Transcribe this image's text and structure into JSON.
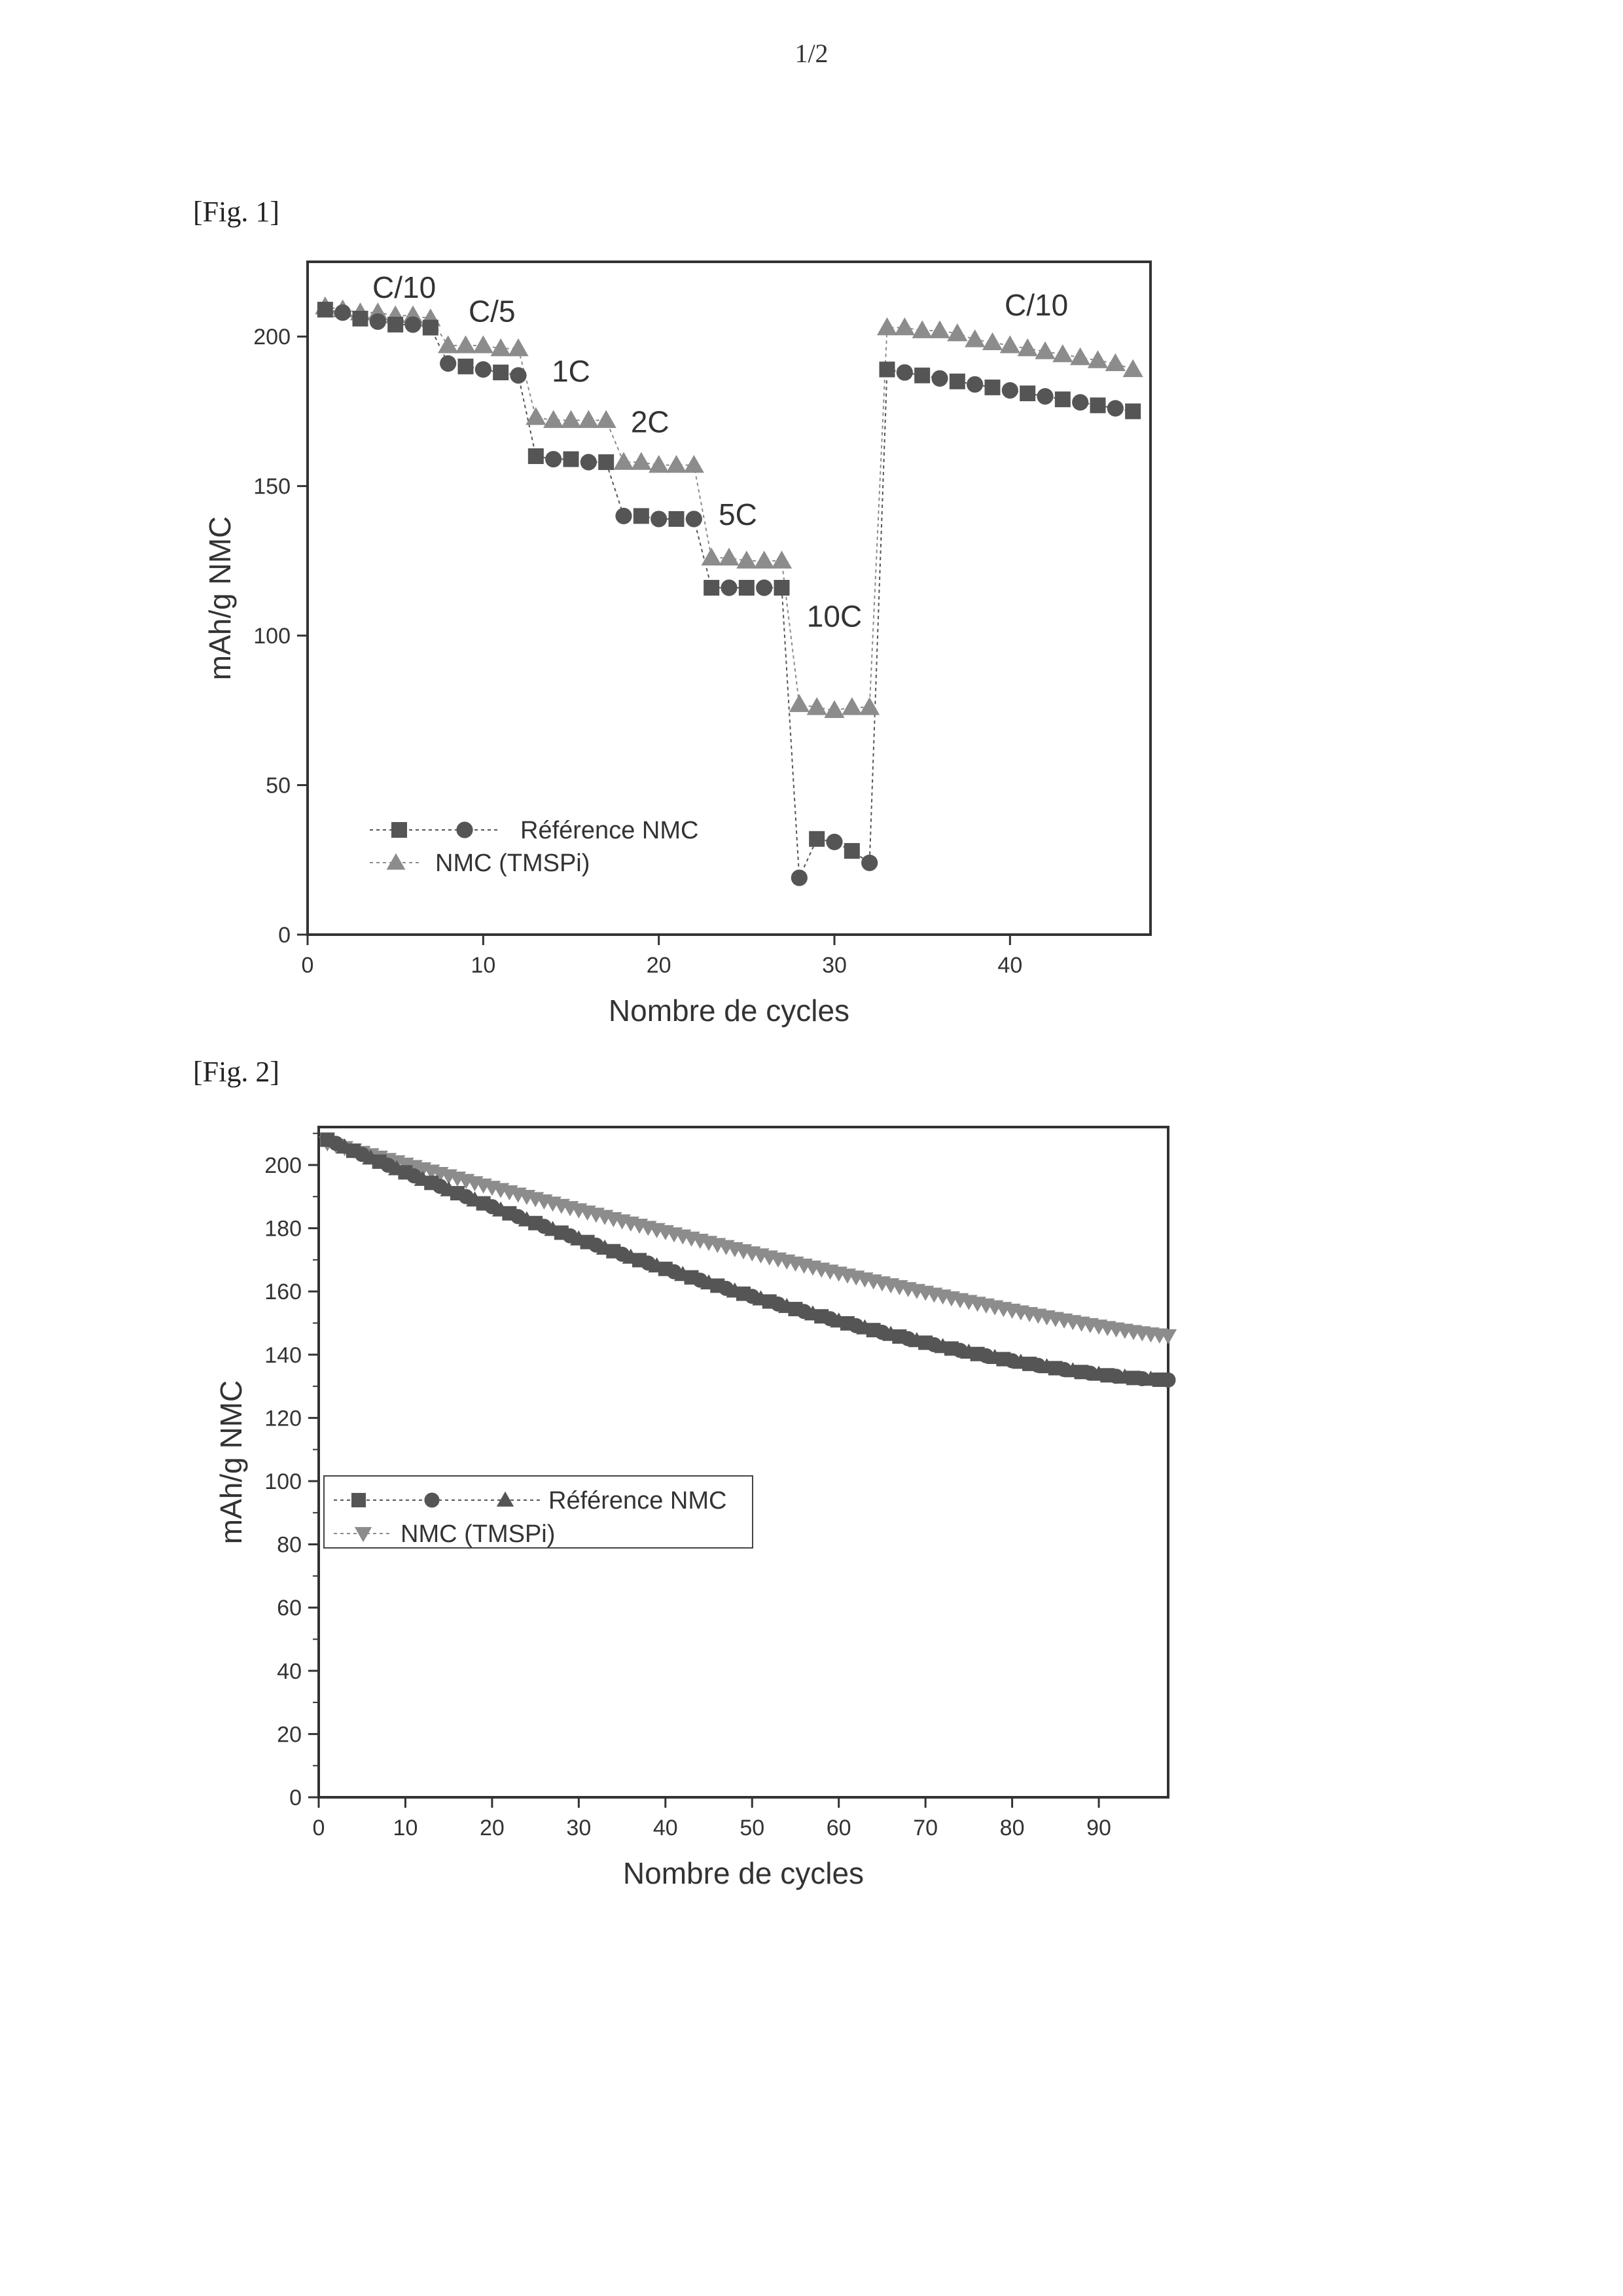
{
  "page": {
    "number": "1/2"
  },
  "figures": [
    {
      "label": "[Fig. 1]"
    },
    {
      "label": "[Fig. 2]"
    }
  ],
  "colors": {
    "ref": "#555555",
    "tmspi": "#8c8c8c",
    "frame": "#333333"
  },
  "chart_data": [
    {
      "type": "scatter",
      "xlabel": "Nombre de cycles",
      "ylabel": "mAh/g NMC",
      "xlim": [
        0,
        48
      ],
      "ylim": [
        0,
        225
      ],
      "xticks": [
        0,
        10,
        20,
        30,
        40
      ],
      "yticks": [
        0,
        50,
        100,
        150,
        200
      ],
      "legend_position": "lower-left",
      "annotations": [
        {
          "text": "C/10",
          "x": 5.5,
          "y": 213
        },
        {
          "text": "C/5",
          "x": 10.5,
          "y": 205
        },
        {
          "text": "1C",
          "x": 15,
          "y": 185
        },
        {
          "text": "2C",
          "x": 19.5,
          "y": 168
        },
        {
          "text": "5C",
          "x": 24.5,
          "y": 137
        },
        {
          "text": "10C",
          "x": 30,
          "y": 103
        },
        {
          "text": "C/10",
          "x": 41.5,
          "y": 207
        }
      ],
      "series": [
        {
          "name": "Référence NMC",
          "marker": "square-circle",
          "x": [
            1,
            2,
            3,
            4,
            5,
            6,
            7,
            8,
            9,
            10,
            11,
            12,
            13,
            14,
            15,
            16,
            17,
            18,
            19,
            20,
            21,
            22,
            23,
            24,
            25,
            26,
            27,
            28,
            29,
            30,
            31,
            32,
            33,
            34,
            35,
            36,
            37,
            38,
            39,
            40,
            41,
            42,
            43,
            44,
            45,
            46,
            47
          ],
          "y": [
            209,
            208,
            206,
            205,
            204,
            204,
            203,
            191,
            190,
            189,
            188,
            187,
            160,
            159,
            159,
            158,
            158,
            140,
            140,
            139,
            139,
            139,
            116,
            116,
            116,
            116,
            116,
            19,
            32,
            31,
            28,
            24,
            189,
            188,
            187,
            186,
            185,
            184,
            183,
            182,
            181,
            180,
            179,
            178,
            177,
            176,
            175
          ]
        },
        {
          "name": "NMC (TMSPi)",
          "marker": "triangle",
          "x": [
            1,
            2,
            3,
            4,
            5,
            6,
            7,
            8,
            9,
            10,
            11,
            12,
            13,
            14,
            15,
            16,
            17,
            18,
            19,
            20,
            21,
            22,
            23,
            24,
            25,
            26,
            27,
            28,
            29,
            30,
            31,
            32,
            33,
            34,
            35,
            36,
            37,
            38,
            39,
            40,
            41,
            42,
            43,
            44,
            45,
            46,
            47
          ],
          "y": [
            210,
            209,
            208,
            208,
            207,
            207,
            206,
            197,
            197,
            197,
            196,
            196,
            173,
            172,
            172,
            172,
            172,
            158,
            158,
            157,
            157,
            157,
            126,
            126,
            125,
            125,
            125,
            77,
            76,
            75,
            76,
            76,
            203,
            203,
            202,
            202,
            201,
            199,
            198,
            197,
            196,
            195,
            194,
            193,
            192,
            191,
            189
          ]
        }
      ]
    },
    {
      "type": "scatter",
      "xlabel": "Nombre de cycles",
      "ylabel": "mAh/g NMC",
      "xlim": [
        0,
        98
      ],
      "ylim": [
        0,
        212
      ],
      "xticks": [
        0,
        10,
        20,
        30,
        40,
        50,
        60,
        70,
        80,
        90
      ],
      "yticks": [
        0,
        20,
        40,
        60,
        80,
        100,
        120,
        140,
        160,
        180,
        200
      ],
      "legend_position": "middle-left",
      "series": [
        {
          "name": "Référence NMC",
          "marker": "square-circle-triangle",
          "curve": {
            "start": 1,
            "end": 98,
            "step": 1,
            "capacity_start": 208,
            "capacity_end": 132,
            "shape": 1.5
          }
        },
        {
          "name": "NMC (TMSPi)",
          "marker": "inverted-triangle",
          "curve": {
            "start": 1,
            "end": 98,
            "step": 1,
            "capacity_start": 207,
            "capacity_end": 146,
            "shape": 1.2
          }
        }
      ]
    }
  ]
}
